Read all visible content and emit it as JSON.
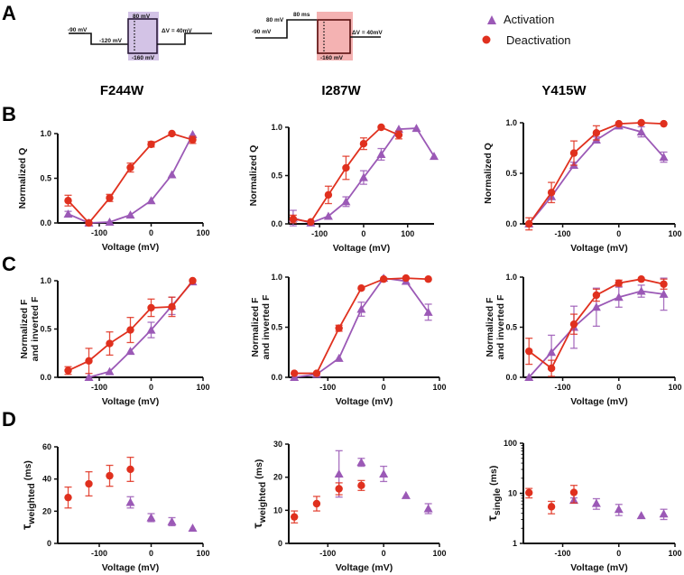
{
  "figure": {
    "panel_letters": [
      "A",
      "B",
      "C",
      "D"
    ],
    "columns": [
      "F244W",
      "I287W",
      "Y415W"
    ],
    "legend": [
      {
        "label": "Activation",
        "marker": "triangle",
        "color": "#9b59b6"
      },
      {
        "label": "Deactivation",
        "marker": "circle",
        "color": "#e0301e"
      }
    ],
    "colors": {
      "activation": "#9b59b6",
      "deactivation": "#e0301e",
      "activation_box": "#d3c3e6",
      "deactivation_box": "#f4b2b2",
      "deactivation_box_border": "#5a0f0f"
    },
    "protocols": [
      {
        "type": "activation",
        "labels": {
          "holding": "-90 mV",
          "prepulse": "-120 mV",
          "top": "80 mV",
          "bottom": "-160 mV",
          "step": "ΔV = 40mV"
        }
      },
      {
        "type": "deactivation",
        "labels": {
          "holding": "-90 mV",
          "prepulse": "80 mV",
          "duration": "80 ms",
          "bottom": "-160 mV",
          "step": "ΔV = 40mV"
        }
      }
    ]
  },
  "chart_data": [
    {
      "id": "B-F244W",
      "row": "B",
      "column": "F244W",
      "type": "line",
      "xlabel": "Voltage (mV)",
      "ylabel": "Normalized Q",
      "xlim": [
        -180,
        100
      ],
      "ylim": [
        0,
        1
      ],
      "xticks": [
        -100,
        0,
        100
      ],
      "yticks": [
        "0.0",
        "0.5",
        "1.0"
      ],
      "yscale": "linear",
      "series": [
        {
          "name": "Activation",
          "connected": true,
          "x": [
            -160,
            -120,
            -80,
            -40,
            0,
            40,
            80
          ],
          "y": [
            0.1,
            0.0,
            0.01,
            0.09,
            0.25,
            0.54,
            0.99
          ],
          "err": [
            0.03,
            0,
            0,
            0,
            0,
            0,
            0
          ]
        },
        {
          "name": "Deactivation",
          "connected": true,
          "x": [
            -160,
            -120,
            -80,
            -40,
            0,
            40,
            80
          ],
          "y": [
            0.25,
            0.0,
            0.28,
            0.62,
            0.88,
            1.0,
            0.93
          ],
          "err": [
            0.06,
            0,
            0.04,
            0.05,
            0.03,
            0,
            0.04
          ]
        }
      ]
    },
    {
      "id": "B-I287W",
      "row": "B",
      "column": "I287W",
      "type": "line",
      "xlabel": "Voltage (mV)",
      "ylabel": "Normalized Q",
      "xlim": [
        -170,
        160
      ],
      "ylim": [
        0,
        1
      ],
      "xticks": [
        -100,
        0,
        100
      ],
      "yticks": [
        "0.0",
        "0.5",
        "1.0"
      ],
      "yscale": "linear",
      "series": [
        {
          "name": "Activation",
          "connected": true,
          "x": [
            -160,
            -120,
            -80,
            -40,
            0,
            40,
            80,
            120,
            160
          ],
          "y": [
            0.06,
            0.01,
            0.08,
            0.23,
            0.48,
            0.72,
            0.98,
            0.99,
            0.7
          ],
          "err": [
            0.08,
            0,
            0,
            0.05,
            0.07,
            0.06,
            0,
            0,
            0
          ]
        },
        {
          "name": "Deactivation",
          "connected": true,
          "x": [
            -160,
            -120,
            -80,
            -40,
            0,
            40,
            80
          ],
          "y": [
            0.05,
            0.02,
            0.3,
            0.58,
            0.83,
            1.0,
            0.92
          ],
          "err": [
            0.04,
            0,
            0.09,
            0.12,
            0.06,
            0,
            0.04
          ]
        }
      ]
    },
    {
      "id": "B-Y415W",
      "row": "B",
      "column": "Y415W",
      "type": "line",
      "xlabel": "Voltage (mV)",
      "ylabel": "Normalized Q",
      "xlim": [
        -170,
        100
      ],
      "ylim": [
        0,
        1
      ],
      "xticks": [
        -100,
        0,
        100
      ],
      "yticks": [
        "0.0",
        "0.5",
        "1.0"
      ],
      "yscale": "linear",
      "series": [
        {
          "name": "Activation",
          "connected": true,
          "x": [
            -160,
            -120,
            -80,
            -40,
            0,
            40,
            80
          ],
          "y": [
            0.0,
            0.27,
            0.58,
            0.83,
            0.97,
            0.91,
            0.66
          ],
          "err": [
            0,
            0,
            0.03,
            0.03,
            0.02,
            0.05,
            0.05
          ]
        },
        {
          "name": "Deactivation",
          "connected": true,
          "x": [
            -160,
            -120,
            -80,
            -40,
            0,
            40,
            80
          ],
          "y": [
            0.0,
            0.31,
            0.7,
            0.9,
            0.99,
            1.0,
            0.99
          ],
          "err": [
            0.06,
            0.1,
            0.12,
            0.07,
            0,
            0,
            0
          ]
        }
      ]
    },
    {
      "id": "C-F244W",
      "row": "C",
      "column": "F244W",
      "type": "line",
      "xlabel": "Voltage (mV)",
      "ylabel": [
        "Normalized F",
        "and inverted F"
      ],
      "xlim": [
        -180,
        100
      ],
      "ylim": [
        0,
        1
      ],
      "xticks": [
        -100,
        0,
        100
      ],
      "yticks": [
        "0.0",
        "0.5",
        "1.0"
      ],
      "yscale": "linear",
      "series": [
        {
          "name": "Activation",
          "connected": true,
          "x": [
            -120,
            -80,
            -40,
            0,
            40,
            80
          ],
          "y": [
            0.0,
            0.06,
            0.27,
            0.49,
            0.74,
            0.99
          ],
          "err": [
            0,
            0,
            0,
            0.08,
            0.09,
            0
          ]
        },
        {
          "name": "Deactivation",
          "connected": true,
          "x": [
            -160,
            -120,
            -80,
            -40,
            0,
            40,
            80
          ],
          "y": [
            0.07,
            0.17,
            0.35,
            0.49,
            0.72,
            0.73,
            1.0
          ],
          "err": [
            0.04,
            0.13,
            0.12,
            0.13,
            0.09,
            0.1,
            0
          ]
        }
      ]
    },
    {
      "id": "C-I287W",
      "row": "C",
      "column": "I287W",
      "type": "line",
      "xlabel": "Voltage (mV)",
      "ylabel": [
        "Normalized F",
        "and inverted F"
      ],
      "xlim": [
        -170,
        100
      ],
      "ylim": [
        0,
        1
      ],
      "xticks": [
        -100,
        0,
        100
      ],
      "yticks": [
        "0.0",
        "0.5",
        "1.0"
      ],
      "yscale": "linear",
      "series": [
        {
          "name": "Activation",
          "connected": true,
          "x": [
            -160,
            -120,
            -80,
            -40,
            0,
            40,
            80
          ],
          "y": [
            0.0,
            0.03,
            0.19,
            0.68,
            0.99,
            0.96,
            0.65
          ],
          "err": [
            0,
            0,
            0,
            0.07,
            0,
            0,
            0.08
          ]
        },
        {
          "name": "Deactivation",
          "connected": true,
          "x": [
            -160,
            -120,
            -80,
            -40,
            0,
            40,
            80
          ],
          "y": [
            0.04,
            0.04,
            0.49,
            0.89,
            0.98,
            0.99,
            0.98
          ],
          "err": [
            0,
            0,
            0.03,
            0,
            0,
            0,
            0
          ]
        }
      ]
    },
    {
      "id": "C-Y415W",
      "row": "C",
      "column": "Y415W",
      "type": "line",
      "xlabel": "Voltage (mV)",
      "ylabel": [
        "Normalized F",
        "and inverted F"
      ],
      "xlim": [
        -170,
        100
      ],
      "ylim": [
        0,
        1
      ],
      "xticks": [
        -100,
        0,
        100
      ],
      "yticks": [
        "0.0",
        "0.5",
        "1.0"
      ],
      "yscale": "linear",
      "series": [
        {
          "name": "Activation",
          "connected": true,
          "x": [
            -160,
            -120,
            -80,
            -40,
            0,
            40,
            80
          ],
          "y": [
            0.0,
            0.25,
            0.5,
            0.7,
            0.8,
            0.86,
            0.83
          ],
          "err": [
            0,
            0.17,
            0.21,
            0.19,
            0.1,
            0.06,
            0.16
          ]
        },
        {
          "name": "Deactivation",
          "connected": true,
          "x": [
            -160,
            -120,
            -80,
            -40,
            0,
            40,
            80
          ],
          "y": [
            0.26,
            0.09,
            0.53,
            0.82,
            0.94,
            0.98,
            0.93
          ],
          "err": [
            0.13,
            0.08,
            0.1,
            0.06,
            0.03,
            0,
            0.05
          ]
        }
      ]
    },
    {
      "id": "D-F244W",
      "row": "D",
      "column": "F244W",
      "type": "scatter",
      "xlabel": "Voltage (mV)",
      "ylabel": "τweighted (ms)",
      "ylabel_main": "τ",
      "ylabel_sub": "weighted",
      "ylabel_unit": " (ms)",
      "xlim": [
        -180,
        100
      ],
      "ylim": [
        0,
        60
      ],
      "xticks": [
        -100,
        0,
        100
      ],
      "yticks": [
        "0",
        "20",
        "40",
        "60"
      ],
      "ytick_values": [
        0,
        20,
        40,
        60
      ],
      "yscale": "linear",
      "series": [
        {
          "name": "Activation",
          "connected": false,
          "x": [
            -40,
            0,
            40,
            80
          ],
          "y": [
            25.5,
            16,
            13.5,
            9.5
          ],
          "err": [
            3.5,
            2.5,
            2.5,
            0
          ]
        },
        {
          "name": "Deactivation",
          "connected": false,
          "x": [
            -160,
            -120,
            -80,
            -40
          ],
          "y": [
            28.5,
            37,
            42,
            46
          ],
          "err": [
            6.5,
            7.5,
            6.5,
            7.5
          ]
        }
      ]
    },
    {
      "id": "D-I287W",
      "row": "D",
      "column": "I287W",
      "type": "scatter",
      "xlabel": "Voltage (mV)",
      "ylabel": "τweighted (ms)",
      "ylabel_main": "τ",
      "ylabel_sub": "weighted",
      "ylabel_unit": " (ms)",
      "xlim": [
        -170,
        100
      ],
      "ylim": [
        0,
        30
      ],
      "xticks": [
        -100,
        0,
        100
      ],
      "yticks": [
        "0",
        "10",
        "20",
        "30"
      ],
      "ytick_values": [
        0,
        10,
        20,
        30
      ],
      "yscale": "linear",
      "series": [
        {
          "name": "Activation",
          "connected": false,
          "x": [
            -80,
            -40,
            0,
            40,
            80
          ],
          "y": [
            21,
            24.5,
            21,
            14.5,
            10.5
          ],
          "err": [
            7,
            1.2,
            2.3,
            0,
            1.5
          ]
        },
        {
          "name": "Deactivation",
          "connected": false,
          "x": [
            -160,
            -120,
            -80,
            -40
          ],
          "y": [
            8,
            12,
            16.5,
            17.5
          ],
          "err": [
            1.8,
            2.2,
            1.8,
            1.5
          ]
        }
      ]
    },
    {
      "id": "D-Y415W",
      "row": "D",
      "column": "Y415W",
      "type": "scatter",
      "xlabel": "Voltage (mV)",
      "ylabel": "τsingle (ms)",
      "ylabel_main": "τ",
      "ylabel_sub": "single",
      "ylabel_unit": " (ms)",
      "xlim": [
        -170,
        100
      ],
      "ylim": [
        1,
        100
      ],
      "xticks": [
        -100,
        0,
        100
      ],
      "yticks": [
        "1",
        "10",
        "100"
      ],
      "ytick_values": [
        1,
        10,
        100
      ],
      "yscale": "log",
      "series": [
        {
          "name": "Activation",
          "connected": false,
          "x": [
            -80,
            -40,
            0,
            40,
            80
          ],
          "y": [
            7.3,
            6.3,
            4.8,
            3.6,
            3.9
          ],
          "err": [
            0.8,
            1.5,
            1.2,
            0,
            0.9
          ]
        },
        {
          "name": "Deactivation",
          "connected": false,
          "x": [
            -160,
            -120,
            -80
          ],
          "y": [
            10.3,
            5.4,
            10.4
          ],
          "err": [
            2.2,
            1.5,
            4.0
          ]
        }
      ]
    }
  ]
}
